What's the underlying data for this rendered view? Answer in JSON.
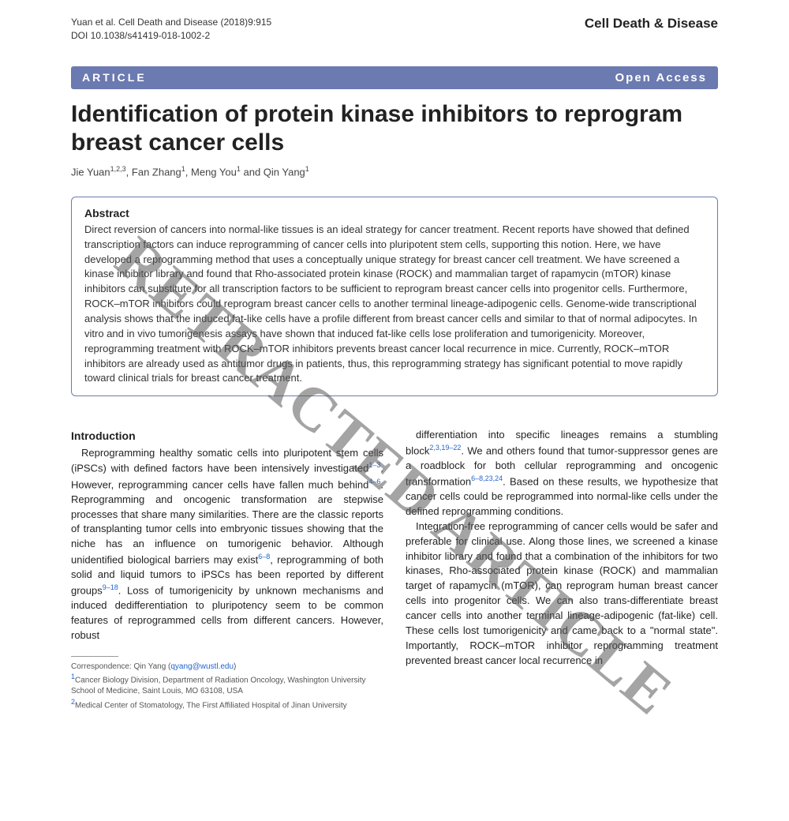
{
  "header": {
    "citation": "Yuan et al. Cell Death and Disease (2018)9:915",
    "doi": "DOI 10.1038/s41419-018-1002-2",
    "journal": "Cell Death & Disease"
  },
  "bar": {
    "article_label": "ARTICLE",
    "open_access": "Open Access"
  },
  "title": "Identification of protein kinase inhibitors to reprogram breast cancer cells",
  "authors_html": "Jie Yuan<sup>1,2,3</sup>, Fan Zhang<sup>1</sup>, Meng You<sup>1</sup> and Qin Yang<sup>1</sup>",
  "abstract": {
    "heading": "Abstract",
    "text": "Direct reversion of cancers into normal-like tissues is an ideal strategy for cancer treatment. Recent reports have showed that defined transcription factors can induce reprogramming of cancer cells into pluripotent stem cells, supporting this notion. Here, we have developed a reprogramming method that uses a conceptually unique strategy for breast cancer cell treatment. We have screened a kinase inhibitor library and found that Rho-associated protein kinase (ROCK) and mammalian target of rapamycin (mTOR) kinase inhibitors can substitute for all transcription factors to be sufficient to reprogram breast cancer cells into progenitor cells. Furthermore, ROCK–mTOR inhibitors could reprogram breast cancer cells to another terminal lineage-adipogenic cells. Genome-wide transcriptional analysis shows that the induced fat-like cells have a profile different from breast cancer cells and similar to that of normal adipocytes. In vitro and in vivo tumorigenesis assays have shown that induced fat-like cells lose proliferation and tumorigenicity. Moreover, reprogramming treatment with ROCK–mTOR inhibitors prevents breast cancer local recurrence in mice. Currently, ROCK–mTOR inhibitors are already used as antitumor drugs in patients, thus, this reprogramming strategy has significant potential to move rapidly toward clinical trials for breast cancer treatment."
  },
  "introduction": {
    "heading": "Introduction",
    "col1_html": "Reprogramming healthy somatic cells into pluripotent stem cells (iPSCs) with defined factors have been intensively investigated<sup>1–3</sup>. However, reprogramming cancer cells have fallen much behind<sup>4–6</sup>. Reprogramming and oncogenic transformation are stepwise processes that share many similarities. There are the classic reports of transplanting tumor cells into embryonic tissues showing that the niche has an influence on tumorigenic behavior. Although unidentified biological barriers may exist<sup>6–8</sup>, reprogramming of both solid and liquid tumors to iPSCs has been reported by different groups<sup>9–18</sup>. Loss of tumorigenicity by unknown mechanisms and induced dedifferentiation to pluripotency seem to be common features of reprogrammed cells from different cancers. However, robust",
    "col2_html": "differentiation into specific lineages remains a stumbling block<sup>2,3,19–22</sup>. We and others found that tumor-suppressor genes are a roadblock for both cellular reprogramming and oncogenic transformation<sup>6–8,23,24</sup>. Based on these results, we hypothesize that cancer cells could be reprogrammed into normal-like cells under the defined reprogramming conditions.",
    "col2_p2": "Integration-free reprogramming of cancer cells would be safer and preferable for clinical use. Along those lines, we screened a kinase inhibitor library and found that a combination of the inhibitors for two kinases, Rho-associated protein kinase (ROCK) and mammalian target of rapamycin (mTOR), can reprogram human breast cancer cells into progenitor cells. We can also trans-differentiate breast cancer cells into another terminal lineage-adipogenic (fat-like) cell. These cells lost tumorigenicity and came back to a \"normal state\". Importantly, ROCK–mTOR inhibitor reprogramming treatment prevented breast cancer local recurrence in"
  },
  "footnote": {
    "correspondence": "Correspondence: Qin Yang (qyang@wustl.edu)",
    "email": "qyang@wustl.edu",
    "affil1": "Cancer Biology Division, Department of Radiation Oncology, Washington University School of Medicine, Saint Louis, MO 63108, USA",
    "affil2": "Medical Center of Stomatology, The First Affiliated Hospital of Jinan University"
  },
  "watermark": "RETRACTED ARTICLE",
  "colors": {
    "bar_bg": "#6b7ab0",
    "link": "#2266cc",
    "watermark": "rgba(90,90,90,0.55)"
  }
}
